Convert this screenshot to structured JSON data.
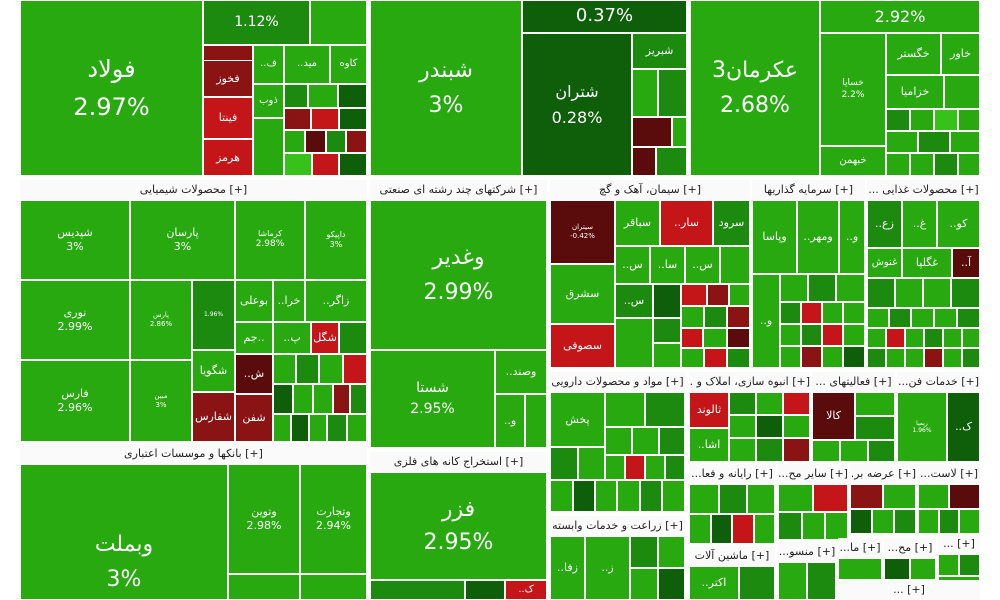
{
  "sectors": [
    {
      "id": "chem",
      "title": "[+] محصولات شیمیایی"
    },
    {
      "id": "multi",
      "title": "[+] شرکتهای چند رشته ای صنعتی"
    },
    {
      "id": "cement",
      "title": "[+] سیمان، آهک و گچ"
    },
    {
      "id": "invest",
      "title": "[+] سرمایه گذاریها"
    },
    {
      "id": "food",
      "title": "[+] محصولات غذایی ..."
    },
    {
      "id": "banks",
      "title": "[+] بانکها و موسسات اعتباری"
    },
    {
      "id": "mining",
      "title": "[+] استخراج کانه های فلزی"
    },
    {
      "id": "pharma",
      "title": "[+] مواد و محصولات دارویی"
    },
    {
      "id": "realestate",
      "title": "[+] انبوه سازی، املاک و ..."
    },
    {
      "id": "misc",
      "title": "[+] فعالیتهای ..."
    },
    {
      "id": "techsvc",
      "title": "[+] خدمات فن..."
    },
    {
      "id": "agri",
      "title": "[+] زراعت و خدمات وابسته"
    },
    {
      "id": "radio",
      "title": "[+] رایانه و فعا..."
    },
    {
      "id": "other",
      "title": "[+] سایر مح..."
    },
    {
      "id": "supply",
      "title": "[+] عرضه بر..."
    },
    {
      "id": "rubber",
      "title": "[+] لاست..."
    },
    {
      "id": "machinery",
      "title": "[+] ماشین آلات"
    },
    {
      "id": "textile",
      "title": "[+] منسو..."
    },
    {
      "id": "s1",
      "title": "[+] ما..."
    },
    {
      "id": "s2",
      "title": "[+] مح..."
    },
    {
      "id": "s3",
      "title": "[+] ..."
    },
    {
      "id": "s4",
      "title": "[+] ..."
    }
  ],
  "tiles": {
    "foolad": {
      "name": "فولاد",
      "pct": "2.97%"
    },
    "tile_112": {
      "name": "",
      "pct": "1.12%"
    },
    "fakhooz": {
      "name": "فخوز",
      "pct": ""
    },
    "fameli": {
      "name": "..ف",
      "pct": ""
    },
    "meid": {
      "name": "..مید",
      "pct": ""
    },
    "kave": {
      "name": "کاوه",
      "pct": ""
    },
    "finta": {
      "name": "فینتا",
      "pct": ""
    },
    "zob": {
      "name": "ذوب",
      "pct": ""
    },
    "harmoz": {
      "name": "هرمز",
      "pct": ""
    },
    "shabandar": {
      "name": "شبندر",
      "pct": "3%"
    },
    "tile_037": {
      "name": "",
      "pct": "0.37%"
    },
    "shatran": {
      "name": "شتران",
      "pct": "0.28%"
    },
    "shabriz": {
      "name": "شبریز",
      "pct": ""
    },
    "akrman3": {
      "name": "عکرمان3",
      "pct": "2.68%"
    },
    "tile_292": {
      "name": "",
      "pct": "2.92%"
    },
    "khegstar": {
      "name": "خگستر",
      "pct": ""
    },
    "khavar": {
      "name": "خاور",
      "pct": ""
    },
    "khasapa": {
      "name": "خساپا",
      "pct": "2.2%"
    },
    "khazamia": {
      "name": "خزامیا",
      "pct": ""
    },
    "khbahman": {
      "name": "خبهمن",
      "pct": ""
    },
    "shepdis": {
      "name": "شپدیس",
      "pct": "3%"
    },
    "parsan": {
      "name": "پارسان",
      "pct": "3%"
    },
    "kermasha": {
      "name": "کرماشا",
      "pct": "2.98%"
    },
    "dapika": {
      "name": "داپیکو",
      "pct": "3%"
    },
    "nouri": {
      "name": "نوری",
      "pct": "2.99%"
    },
    "pars": {
      "name": "پارس",
      "pct": "2.86%"
    },
    "tile_196": {
      "name": "",
      "pct": "1.96%"
    },
    "booali": {
      "name": "بوعلی",
      "pct": ""
    },
    "khara": {
      "name": "..خرا",
      "pct": ""
    },
    "zagros": {
      "name": "..زاگر",
      "pct": ""
    },
    "jam": {
      "name": "جم..",
      "pct": ""
    },
    "p_dots": {
      "name": "..پ",
      "pct": ""
    },
    "shekal": {
      "name": "شگل",
      "pct": ""
    },
    "fars": {
      "name": "فارس",
      "pct": "2.96%"
    },
    "mobin": {
      "name": "مبین",
      "pct": "3%"
    },
    "shgooya": {
      "name": "شگویا",
      "pct": ""
    },
    "sh_dots": {
      "name": "..ش",
      "pct": ""
    },
    "shafars": {
      "name": "شفارس",
      "pct": ""
    },
    "shafan": {
      "name": "شفن",
      "pct": ""
    },
    "vaghadir": {
      "name": "وغدیر",
      "pct": "2.99%"
    },
    "shasta": {
      "name": "شستا",
      "pct": "2.95%"
    },
    "vasand": {
      "name": "..وصند",
      "pct": ""
    },
    "v_dots": {
      "name": "..و",
      "pct": ""
    },
    "sistran": {
      "name": "سیتران",
      "pct": "-0.42%"
    },
    "sabaghar": {
      "name": "سباقر",
      "pct": ""
    },
    "sar": {
      "name": "..سار",
      "pct": ""
    },
    "sroud": {
      "name": "سرود",
      "pct": ""
    },
    "sa_dots": {
      "name": "..سا",
      "pct": ""
    },
    "s_dots1": {
      "name": "..س",
      "pct": ""
    },
    "s_dots2": {
      "name": "..س",
      "pct": ""
    },
    "s_dots3": {
      "name": "..س",
      "pct": ""
    },
    "sesharq": {
      "name": "سشرق",
      "pct": ""
    },
    "sesoufi": {
      "name": "سصوفی",
      "pct": ""
    },
    "vapasa": {
      "name": "وپاسا",
      "pct": ""
    },
    "vamehr": {
      "name": "..ومهر",
      "pct": ""
    },
    "vaa": {
      "name": "..و",
      "pct": ""
    },
    "vaa2": {
      "name": "..و",
      "pct": ""
    },
    "zara": {
      "name": "..زع",
      "pct": ""
    },
    "gha": {
      "name": "..غ",
      "pct": ""
    },
    "koo": {
      "name": "..کو",
      "pct": ""
    },
    "ghgolpa": {
      "name": "غگلپا",
      "pct": ""
    },
    "ghanoush": {
      "name": "غنوش",
      "pct": ""
    },
    "aa": {
      "name": "..آ",
      "pct": ""
    },
    "vabmellat": {
      "name": "وبملت",
      "pct": "3%"
    },
    "vatoein": {
      "name": "وتوین",
      "pct": "2.98%"
    },
    "vatejarat": {
      "name": "وتجارت",
      "pct": "2.94%"
    },
    "fazr": {
      "name": "فزر",
      "pct": "2.95%"
    },
    "kaa": {
      "name": "..ک",
      "pct": ""
    },
    "pakhsh": {
      "name": "پخش",
      "pct": ""
    },
    "saloned": {
      "name": "ثالوند",
      "pct": ""
    },
    "esha": {
      "name": "..اشا",
      "pct": ""
    },
    "kala": {
      "name": "کالا",
      "pct": ""
    },
    "rayane": {
      "name": "ریمیا",
      "pct": "1.96%"
    },
    "k2": {
      "name": "..ک",
      "pct": ""
    },
    "zfa": {
      "name": "..زفا",
      "pct": ""
    },
    "z2": {
      "name": "..ز",
      "pct": ""
    },
    "kt": {
      "name": "..اکتر",
      "pct": ""
    }
  }
}
